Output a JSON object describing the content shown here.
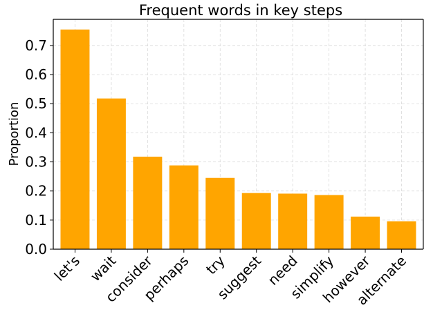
{
  "chart_data": {
    "type": "bar",
    "title": "Frequent words in key steps",
    "xlabel": "",
    "ylabel": "Proportion",
    "categories": [
      "let's",
      "wait",
      "consider",
      "perhaps",
      "try",
      "suggest",
      "need",
      "simplify",
      "however",
      "alternate"
    ],
    "values": [
      0.755,
      0.518,
      0.318,
      0.288,
      0.245,
      0.193,
      0.191,
      0.186,
      0.112,
      0.096
    ],
    "ylim": [
      0,
      0.79
    ],
    "yticks": [
      0.0,
      0.1,
      0.2,
      0.3,
      0.4,
      0.5,
      0.6,
      0.7
    ],
    "ytick_labels": [
      "0.0",
      "0.1",
      "0.2",
      "0.3",
      "0.4",
      "0.5",
      "0.6",
      "0.7"
    ],
    "grid": true,
    "bar_color": "#FFA500"
  }
}
